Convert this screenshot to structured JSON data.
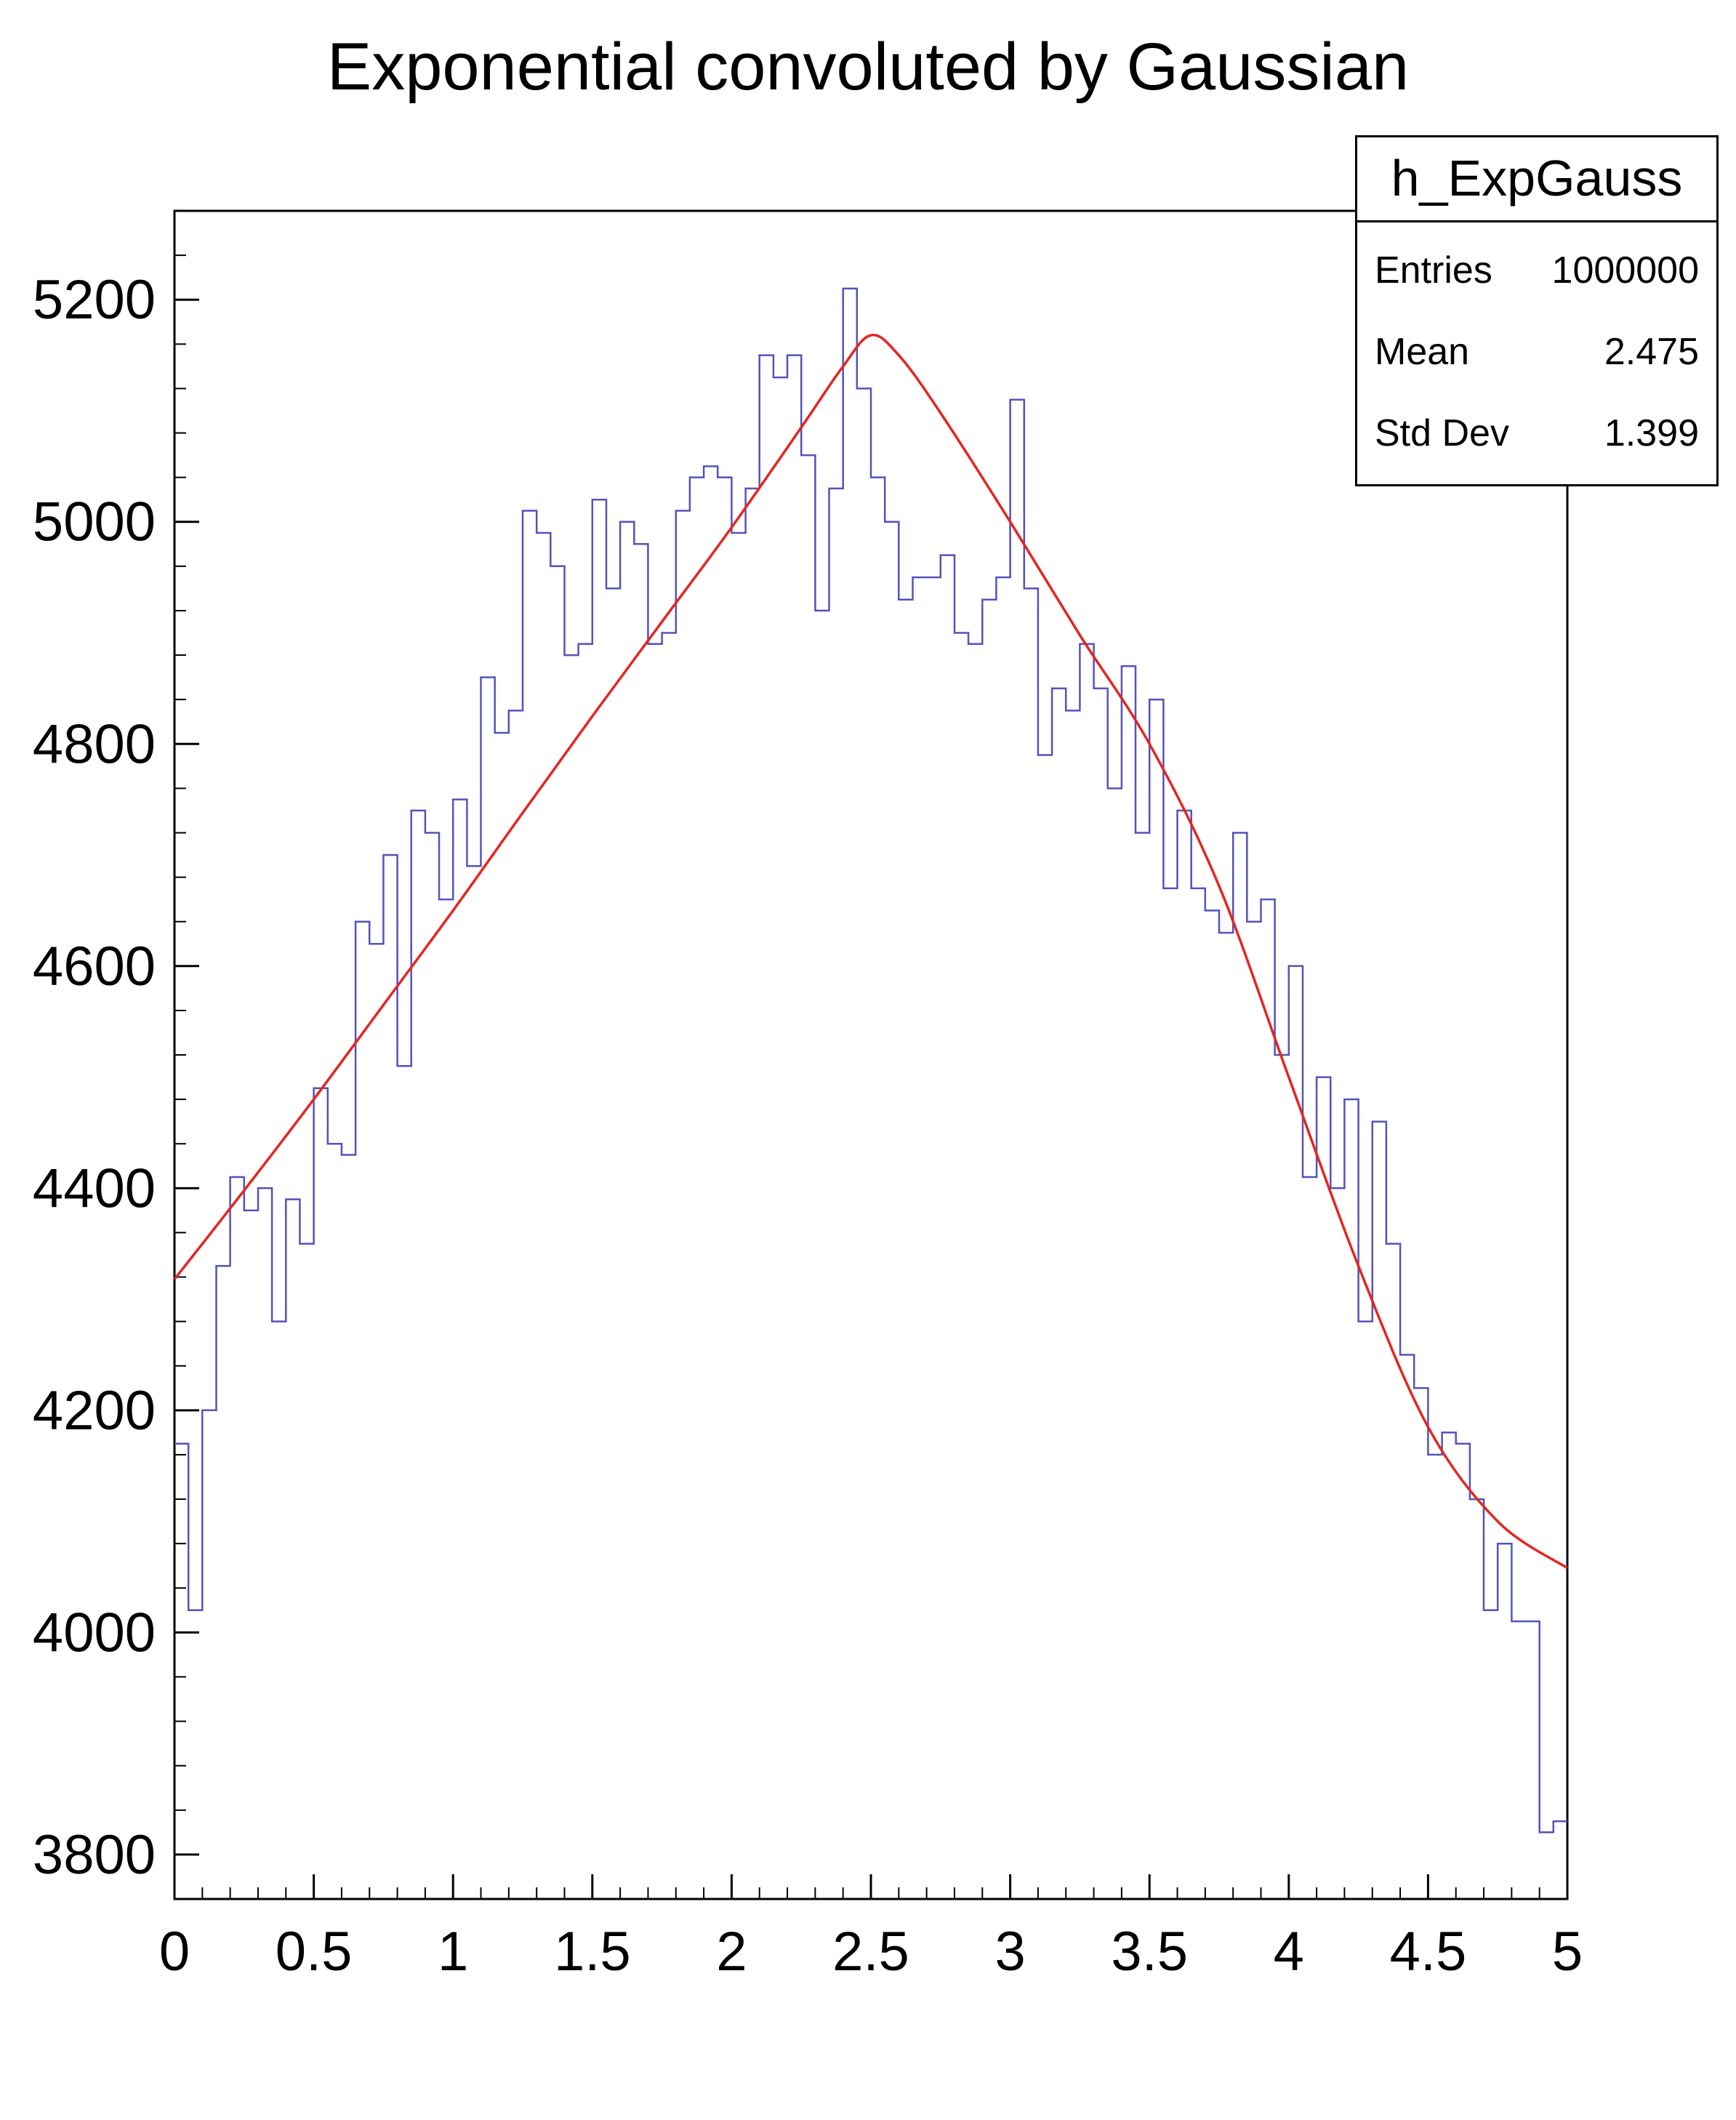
{
  "title": "Exponential convoluted by Gaussian",
  "stats_box": {
    "title": "h_ExpGauss",
    "rows": [
      {
        "label": "Entries",
        "value": "1000000"
      },
      {
        "label": "Mean",
        "value": "2.475"
      },
      {
        "label": "Std Dev",
        "value": "1.399"
      }
    ]
  },
  "colors": {
    "histogram_line": "#5353bc",
    "fit_curve": "#e52520",
    "axis": "#000000",
    "text": "#000000",
    "background": "#ffffff"
  },
  "chart_data": {
    "type": "line",
    "title": "Exponential convoluted by Gaussian",
    "xlabel": "",
    "ylabel": "",
    "xlim": [
      0,
      5
    ],
    "ylim": [
      3760,
      5280
    ],
    "grid": false,
    "legend": "stats-box-top-right",
    "x_tick_values": [
      0,
      0.5,
      1,
      1.5,
      2,
      2.5,
      3,
      3.5,
      4,
      4.5,
      5
    ],
    "x_tick_labels": [
      "0",
      "0.5",
      "1",
      "1.5",
      "2",
      "2.5",
      "3",
      "3.5",
      "4",
      "4.5",
      "5"
    ],
    "x_minor_step": 0.1,
    "y_tick_values": [
      3800,
      4000,
      4200,
      4400,
      4600,
      4800,
      5000,
      5200
    ],
    "y_tick_labels": [
      "3800",
      "4000",
      "4200",
      "4400",
      "4600",
      "4800",
      "5000",
      "5200"
    ],
    "y_minor_step": 40,
    "series": [
      {
        "name": "h_ExpGauss",
        "style": "histogram-step",
        "color_key": "histogram_line",
        "bin_start": 0,
        "bin_width": 0.05,
        "values": [
          4170,
          4020,
          4200,
          4330,
          4410,
          4380,
          4400,
          4280,
          4390,
          4350,
          4490,
          4440,
          4430,
          4640,
          4620,
          4700,
          4510,
          4740,
          4720,
          4660,
          4750,
          4690,
          4860,
          4810,
          4830,
          5010,
          4990,
          4960,
          4880,
          4890,
          5020,
          4940,
          5000,
          4980,
          4890,
          4900,
          5010,
          5040,
          5050,
          5040,
          4990,
          5030,
          5150,
          5130,
          5150,
          5060,
          4920,
          5030,
          5210,
          5120,
          5040,
          5000,
          4930,
          4950,
          4950,
          4970,
          4900,
          4890,
          4930,
          4950,
          5110,
          4940,
          4790,
          4850,
          4830,
          4890,
          4850,
          4760,
          4870,
          4720,
          4840,
          4670,
          4740,
          4670,
          4650,
          4630,
          4720,
          4640,
          4660,
          4520,
          4600,
          4410,
          4500,
          4400,
          4480,
          4280,
          4460,
          4350,
          4250,
          4220,
          4160,
          4180,
          4170,
          4120,
          4020,
          4080,
          4010,
          4010,
          3820,
          3830
        ]
      },
      {
        "name": "exp-gauss-fit-curve",
        "style": "smooth-line",
        "color_key": "fit_curve",
        "x": [
          0,
          0.25,
          0.5,
          0.75,
          1,
          1.25,
          1.5,
          1.75,
          2,
          2.25,
          2.4,
          2.5,
          2.6,
          2.75,
          3,
          3.25,
          3.5,
          3.75,
          4,
          4.25,
          4.5,
          4.75,
          5
        ],
        "y": [
          4318,
          4398,
          4480,
          4565,
          4650,
          4738,
          4825,
          4910,
          4995,
          5085,
          5140,
          5168,
          5150,
          5098,
          5000,
          4898,
          4800,
          4672,
          4500,
          4330,
          4185,
          4100,
          4058
        ]
      }
    ]
  }
}
